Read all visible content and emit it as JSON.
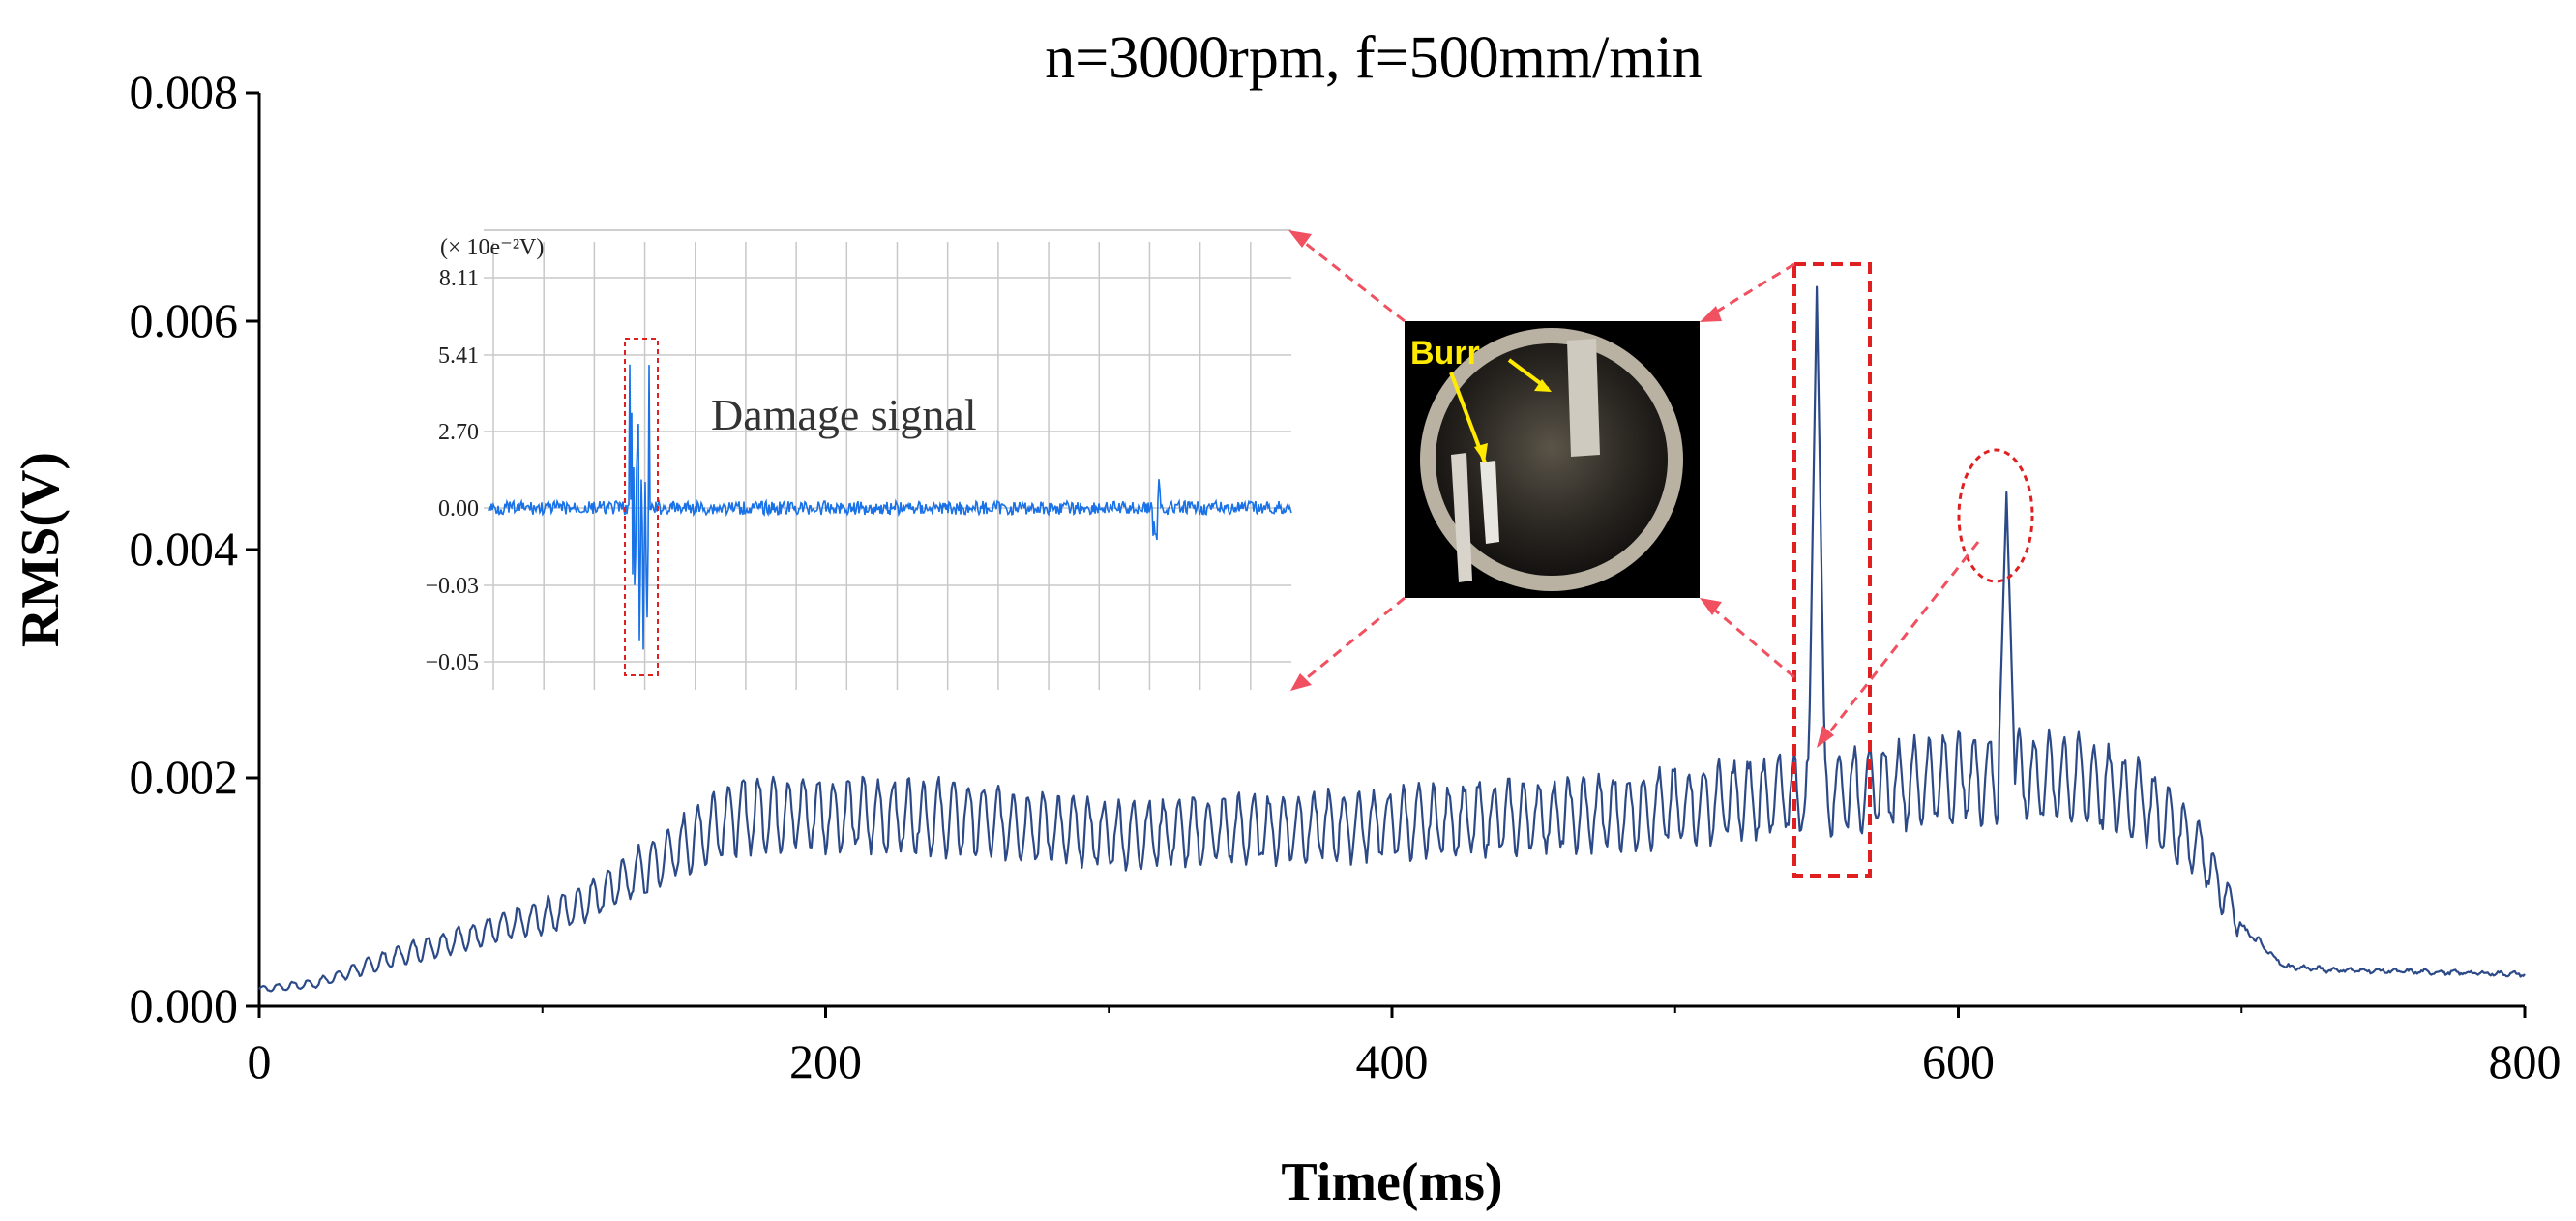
{
  "chart_data": {
    "type": "line",
    "title": "n=3000rpm, f=500mm/min",
    "xlabel": "Time(ms)",
    "ylabel": "RMS(V)",
    "xlim": [
      0,
      800
    ],
    "ylim": [
      0,
      0.008
    ],
    "x_ticks": [
      "0",
      "200",
      "400",
      "600",
      "800"
    ],
    "y_ticks": [
      "0.000",
      "0.002",
      "0.004",
      "0.006",
      "0.008"
    ],
    "grid": false,
    "legend": "none",
    "line_color": "#2c4a87",
    "envelope": [
      {
        "x": 0,
        "y": 0.00015
      },
      {
        "x": 20,
        "y": 0.0002
      },
      {
        "x": 50,
        "y": 0.00045
      },
      {
        "x": 80,
        "y": 0.00065
      },
      {
        "x": 110,
        "y": 0.00085
      },
      {
        "x": 140,
        "y": 0.00125
      },
      {
        "x": 165,
        "y": 0.00165
      },
      {
        "x": 180,
        "y": 0.0017
      },
      {
        "x": 250,
        "y": 0.00165
      },
      {
        "x": 300,
        "y": 0.0015
      },
      {
        "x": 400,
        "y": 0.0016
      },
      {
        "x": 480,
        "y": 0.0017
      },
      {
        "x": 540,
        "y": 0.00185
      },
      {
        "x": 600,
        "y": 0.002
      },
      {
        "x": 640,
        "y": 0.002
      },
      {
        "x": 665,
        "y": 0.0018
      },
      {
        "x": 685,
        "y": 0.0014
      },
      {
        "x": 700,
        "y": 0.0007
      },
      {
        "x": 715,
        "y": 0.00035
      },
      {
        "x": 730,
        "y": 0.00032
      },
      {
        "x": 800,
        "y": 0.00028
      }
    ],
    "spikes": [
      {
        "x": 550,
        "y": 0.0063
      },
      {
        "x": 617,
        "y": 0.0045
      }
    ],
    "insets": [
      {
        "type": "line",
        "unit_label": "(× 10e⁻²V)",
        "annotation": "Damage signal",
        "y_ticks": [
          "8.11",
          "5.41",
          "2.70",
          "0.00",
          "−0.03",
          "−0.05"
        ],
        "line_color": "#1a72e8"
      },
      {
        "type": "image",
        "label": "Burr"
      }
    ]
  }
}
